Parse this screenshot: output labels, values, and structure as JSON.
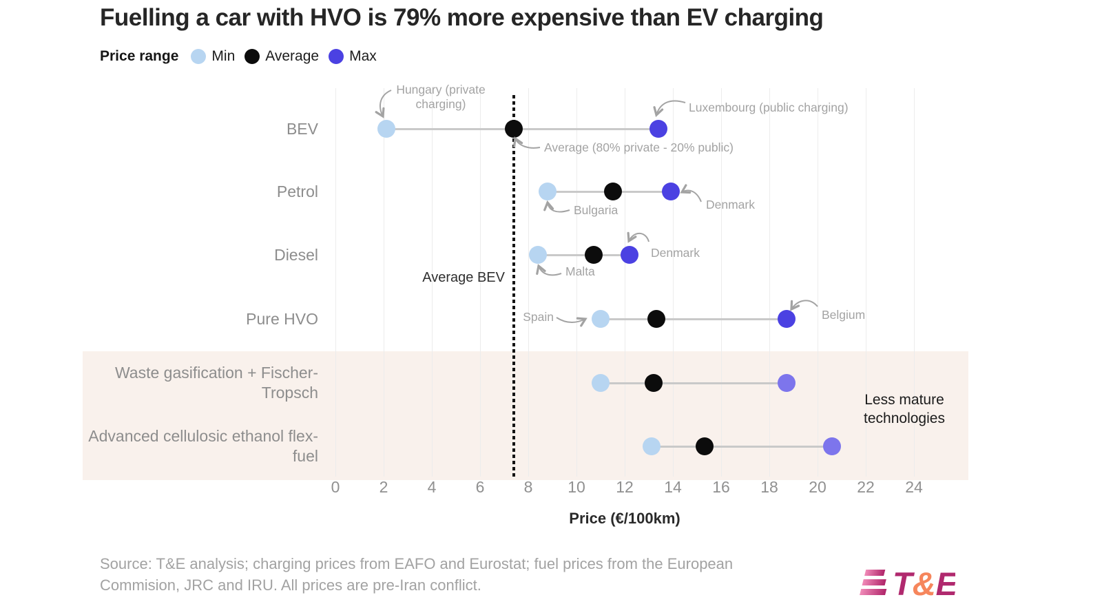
{
  "title": "Fuelling a car with HVO is 79% more expensive than EV charging",
  "legend": {
    "label": "Price range",
    "items": [
      {
        "label": "Min",
        "color": "#b7d5f1"
      },
      {
        "label": "Average",
        "color": "#0c0c0c"
      },
      {
        "label": "Max",
        "color": "#4b41e2"
      }
    ]
  },
  "chart_data": {
    "type": "dumbbell-dot",
    "title": "Fuelling a car with HVO is 79% more expensive than EV charging",
    "xlabel": "Price (€/100km)",
    "xlim": [
      0,
      24
    ],
    "x_ticks": [
      0,
      2,
      4,
      6,
      8,
      10,
      12,
      14,
      16,
      18,
      20,
      22,
      24
    ],
    "grid": "vertical",
    "series_names": [
      "Min",
      "Average",
      "Max"
    ],
    "categories": [
      "BEV",
      "Petrol",
      "Diesel",
      "Pure HVO",
      "Waste gasification + Fischer-Tropsch",
      "Advanced cellulosic ethanol flex-fuel"
    ],
    "rows": [
      {
        "category": "BEV",
        "min": 2.1,
        "avg": 7.4,
        "max": 13.4,
        "less_mature": false
      },
      {
        "category": "Petrol",
        "min": 8.8,
        "avg": 11.5,
        "max": 13.9,
        "less_mature": false
      },
      {
        "category": "Diesel",
        "min": 8.4,
        "avg": 10.7,
        "max": 12.2,
        "less_mature": false
      },
      {
        "category": "Pure HVO",
        "min": 11.0,
        "avg": 13.3,
        "max": 18.7,
        "less_mature": false
      },
      {
        "category": "Waste gasification + Fischer-Tropsch",
        "min": 11.0,
        "avg": 13.2,
        "max": 18.7,
        "less_mature": true
      },
      {
        "category": "Advanced cellulosic ethanol flex-fuel",
        "min": 13.1,
        "avg": 15.3,
        "max": 20.6,
        "less_mature": true
      }
    ],
    "colors": {
      "min": "#b7d5f1",
      "avg": "#0c0c0c",
      "max": "#4b41e2",
      "max_less_mature": "#7d75ec",
      "connector": "#c9c9c9",
      "band": "#f9f1ec",
      "refline": "#141414"
    },
    "reference_line": {
      "value": 7.4,
      "label": "Average BEV"
    },
    "band": {
      "label": "Less mature technologies",
      "rows": [
        "Waste gasification + Fischer-Tropsch",
        "Advanced cellulosic ethanol flex-fuel"
      ]
    },
    "annotations": [
      {
        "id": "hungary",
        "text": "Hungary (private charging)",
        "points_to": "BEV min"
      },
      {
        "id": "luxembourg",
        "text": "Luxembourg (public charging)",
        "points_to": "BEV max"
      },
      {
        "id": "avg-mix",
        "text": "Average (80% private - 20% public)",
        "points_to": "BEV avg"
      },
      {
        "id": "bulgaria",
        "text": "Bulgaria",
        "points_to": "Petrol min"
      },
      {
        "id": "denmark-petrol",
        "text": "Denmark",
        "points_to": "Petrol max"
      },
      {
        "id": "malta",
        "text": "Malta",
        "points_to": "Diesel min"
      },
      {
        "id": "denmark-diesel",
        "text": "Denmark",
        "points_to": "Diesel max"
      },
      {
        "id": "spain",
        "text": "Spain",
        "points_to": "Pure HVO min"
      },
      {
        "id": "belgium",
        "text": "Belgium",
        "points_to": "Pure HVO max"
      }
    ]
  },
  "source": {
    "line1": "Source: T&E analysis; charging prices from EAFO and Eurostat; fuel prices from the European",
    "line2": "Commision, JRC and IRU. All prices are pre-Iran conflict."
  },
  "logo": {
    "parts": [
      {
        "text": "T",
        "color": "#b0296e"
      },
      {
        "text": "&",
        "color": "#f6865c"
      },
      {
        "text": "E",
        "color": "#b0296e"
      }
    ]
  }
}
